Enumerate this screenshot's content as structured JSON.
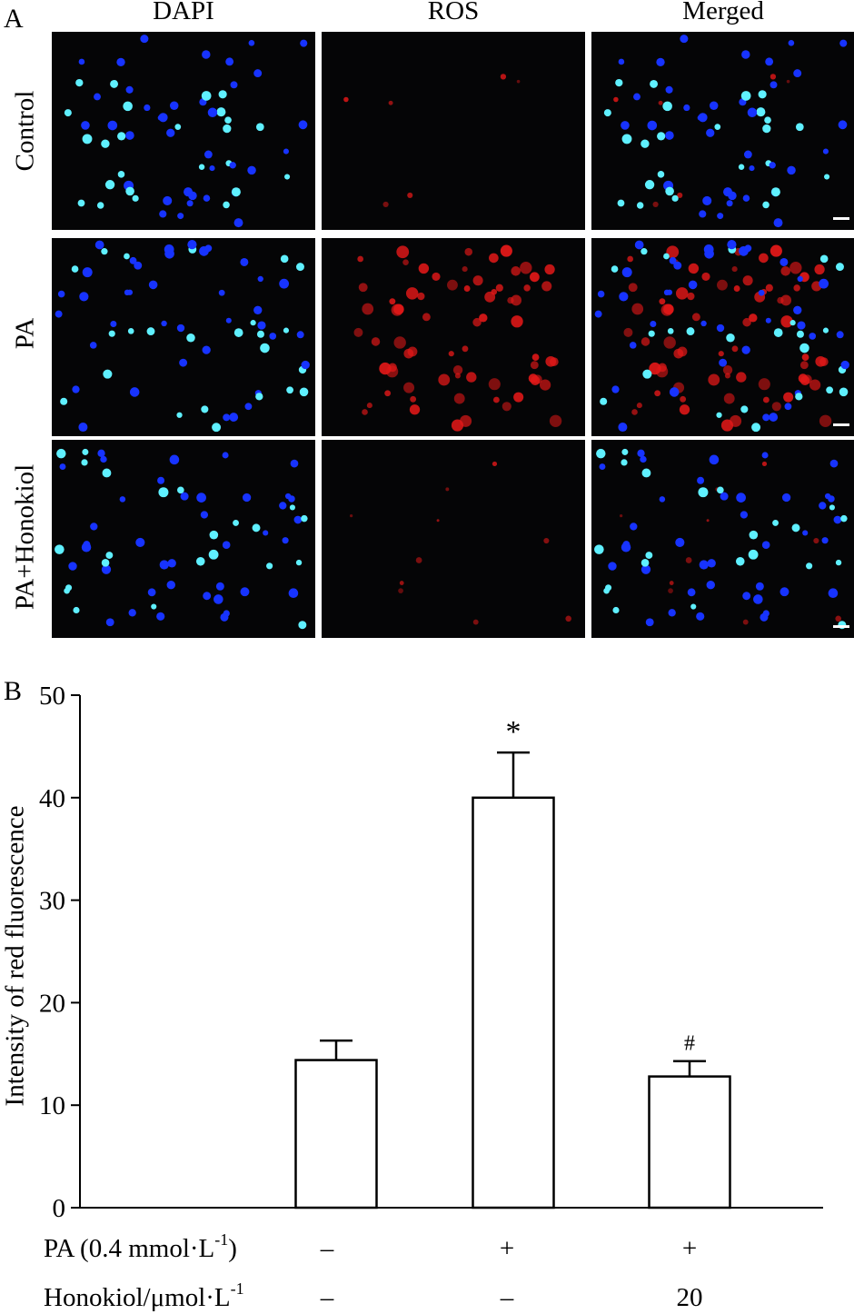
{
  "panel_a": {
    "letter": "A",
    "columns": [
      "DAPI",
      "ROS",
      "Merged"
    ],
    "rows": [
      "Control",
      "PA",
      "PA+Honokiol"
    ]
  },
  "panel_b": {
    "letter": "B",
    "conditions": [
      {
        "label": "PA (0.4 mmol·L",
        "sup": "-1",
        "suffix": ")",
        "values": [
          "–",
          "+",
          "+"
        ]
      },
      {
        "label": "Honokiol/μmol·L",
        "sup": "-1",
        "suffix": "",
        "values": [
          "–",
          "–",
          "20"
        ]
      }
    ]
  },
  "chart_data": {
    "type": "bar",
    "categories": [
      "Control",
      "PA",
      "PA+Honokiol"
    ],
    "values": [
      14.4,
      40.0,
      12.8
    ],
    "errors": [
      1.9,
      4.4,
      1.5
    ],
    "significance": [
      "",
      "*",
      "#"
    ],
    "title": "",
    "xlabel": "",
    "ylabel": "Intensity of red fluorescence",
    "ylim": [
      0,
      50
    ],
    "yticks": [
      0,
      10,
      20,
      30,
      40,
      50
    ],
    "colors": {
      "bar_fill": "#ffffff",
      "bar_stroke": "#000000"
    },
    "grid": false
  },
  "micro_colors": {
    "dapi": "#1733ff",
    "dapi_bright": "#5ff0ff",
    "ros": "#e01818",
    "background": "#050506"
  }
}
